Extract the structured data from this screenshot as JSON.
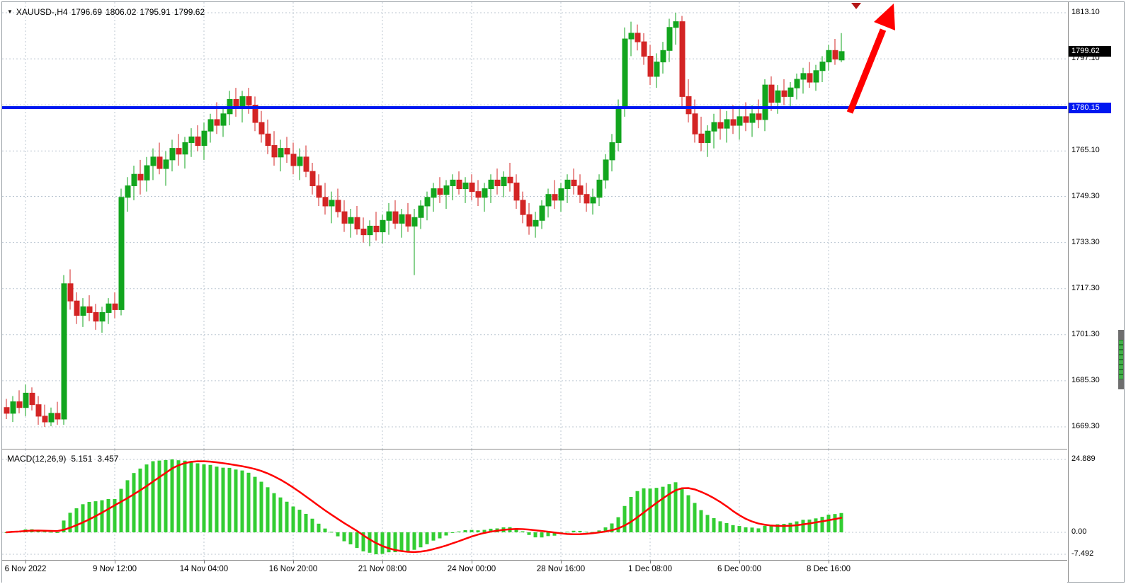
{
  "chart_data": {
    "type": "candlestick+macd",
    "symbol_tf": "XAUUSD-,H4",
    "symbol": "XAUUSD-",
    "timeframe": "H4",
    "ohlc_header": {
      "open": "1796.69",
      "high": "1806.02",
      "low": "1795.91",
      "close": "1799.62"
    },
    "price_axis": {
      "gridline_prices": [
        1813.1,
        1797.1,
        1781.1,
        1765.1,
        1749.3,
        1733.3,
        1717.3,
        1701.3,
        1685.3,
        1669.3
      ],
      "tick_labels": [
        {
          "text": "1813.10",
          "price": 1813.1
        },
        {
          "text": "1797.10",
          "price": 1797.1
        },
        {
          "text": "1765.10",
          "price": 1765.1
        },
        {
          "text": "1749.30",
          "price": 1749.3
        },
        {
          "text": "1733.30",
          "price": 1733.3
        },
        {
          "text": "1717.30",
          "price": 1717.3
        },
        {
          "text": "1701.30",
          "price": 1701.3
        },
        {
          "text": "1685.30",
          "price": 1685.3
        },
        {
          "text": "1669.30",
          "price": 1669.3
        }
      ],
      "current_price_tag": {
        "text": "1799.62",
        "price": 1799.62,
        "bg": "#000000",
        "fg": "#ffffff"
      },
      "hline_tag": {
        "text": "1780.15",
        "price": 1780.15,
        "bg": "#0018f0",
        "fg": "#ffffff"
      }
    },
    "time_axis": {
      "labels": [
        "6 Nov 2022",
        "9 Nov 12:00",
        "14 Nov 04:00",
        "16 Nov 20:00",
        "21 Nov 08:00",
        "24 Nov 00:00",
        "28 Nov 16:00",
        "1 Dec 08:00",
        "6 Dec 00:00",
        "8 Dec 16:00"
      ],
      "bar_indices": [
        3,
        17,
        31,
        45,
        59,
        73,
        87,
        101,
        115,
        129
      ]
    },
    "horizontal_line": {
      "price": 1780.15,
      "color": "#0018f0"
    },
    "annotations": {
      "trend_arrow": {
        "color": "#ff0000",
        "direction": "up-right"
      }
    },
    "colors": {
      "bull": "#12a51e",
      "bear": "#d32424",
      "grid": "#bcc7d2",
      "background": "#ffffff",
      "axis_text": "#000000"
    },
    "candles": [
      [
        1676,
        1679,
        1672,
        1674
      ],
      [
        1674,
        1680,
        1671,
        1678
      ],
      [
        1678,
        1682,
        1674,
        1676
      ],
      [
        1676,
        1684,
        1673,
        1681
      ],
      [
        1681,
        1683,
        1675,
        1677
      ],
      [
        1677,
        1680,
        1670,
        1673
      ],
      [
        1673,
        1677,
        1669.3,
        1671
      ],
      [
        1671,
        1676,
        1669.5,
        1674
      ],
      [
        1674,
        1678,
        1670,
        1672
      ],
      [
        1672,
        1722,
        1670,
        1719
      ],
      [
        1719,
        1724,
        1710,
        1713
      ],
      [
        1713,
        1716,
        1705,
        1708
      ],
      [
        1708,
        1714,
        1704,
        1711
      ],
      [
        1711,
        1715,
        1706,
        1709
      ],
      [
        1709,
        1712,
        1703,
        1706
      ],
      [
        1706,
        1711,
        1702,
        1709
      ],
      [
        1709,
        1714,
        1705,
        1712
      ],
      [
        1712,
        1716,
        1707,
        1710
      ],
      [
        1710,
        1752,
        1708,
        1749
      ],
      [
        1749,
        1756,
        1744,
        1753
      ],
      [
        1753,
        1760,
        1748,
        1757
      ],
      [
        1757,
        1762,
        1750,
        1755
      ],
      [
        1755,
        1763,
        1751,
        1760
      ],
      [
        1760,
        1766,
        1755,
        1763
      ],
      [
        1763,
        1768,
        1757,
        1759
      ],
      [
        1759,
        1765,
        1753,
        1762
      ],
      [
        1762,
        1769,
        1758,
        1766
      ],
      [
        1766,
        1771,
        1760,
        1764
      ],
      [
        1764,
        1770,
        1759,
        1768
      ],
      [
        1768,
        1773,
        1763,
        1770
      ],
      [
        1770,
        1774,
        1765,
        1767
      ],
      [
        1767,
        1775,
        1762,
        1772
      ],
      [
        1772,
        1778,
        1768,
        1776
      ],
      [
        1776,
        1782,
        1771,
        1774
      ],
      [
        1774,
        1780,
        1770,
        1778
      ],
      [
        1778,
        1786,
        1774,
        1783
      ],
      [
        1783,
        1787,
        1777,
        1780
      ],
      [
        1780,
        1786,
        1775,
        1784
      ],
      [
        1784,
        1787,
        1778,
        1781
      ],
      [
        1781,
        1784,
        1772,
        1775
      ],
      [
        1775,
        1779,
        1768,
        1771
      ],
      [
        1771,
        1776,
        1764,
        1767
      ],
      [
        1767,
        1772,
        1760,
        1763
      ],
      [
        1763,
        1769,
        1758,
        1766
      ],
      [
        1766,
        1770,
        1761,
        1764
      ],
      [
        1764,
        1768,
        1757,
        1760
      ],
      [
        1760,
        1766,
        1755,
        1763
      ],
      [
        1763,
        1767,
        1756,
        1758
      ],
      [
        1758,
        1761,
        1750,
        1753
      ],
      [
        1753,
        1757,
        1746,
        1749
      ],
      [
        1749,
        1754,
        1743,
        1746
      ],
      [
        1746,
        1751,
        1740,
        1748
      ],
      [
        1748,
        1752,
        1742,
        1744
      ],
      [
        1744,
        1748,
        1737,
        1740
      ],
      [
        1740,
        1745,
        1735,
        1742
      ],
      [
        1742,
        1746,
        1736,
        1738
      ],
      [
        1738,
        1742,
        1733.3,
        1736
      ],
      [
        1736,
        1741,
        1732,
        1739
      ],
      [
        1739,
        1744,
        1734,
        1737
      ],
      [
        1737,
        1743,
        1733,
        1741
      ],
      [
        1741,
        1747,
        1736,
        1744
      ],
      [
        1744,
        1748,
        1738,
        1740
      ],
      [
        1740,
        1745,
        1735,
        1743
      ],
      [
        1743,
        1747,
        1737,
        1739
      ],
      [
        1739,
        1745,
        1722,
        1742
      ],
      [
        1742,
        1748,
        1738,
        1746
      ],
      [
        1746,
        1751,
        1741,
        1749
      ],
      [
        1749,
        1754,
        1744,
        1752
      ],
      [
        1752,
        1756,
        1747,
        1750
      ],
      [
        1750,
        1755,
        1745,
        1753
      ],
      [
        1753,
        1757,
        1748,
        1755
      ],
      [
        1755,
        1758,
        1750,
        1752
      ],
      [
        1752,
        1756,
        1747,
        1754
      ],
      [
        1754,
        1757,
        1748,
        1751
      ],
      [
        1751,
        1755,
        1746,
        1749
      ],
      [
        1749,
        1754,
        1744,
        1752
      ],
      [
        1752,
        1757,
        1747,
        1755
      ],
      [
        1755,
        1759,
        1750,
        1753
      ],
      [
        1753,
        1758,
        1749,
        1756
      ],
      [
        1756,
        1761,
        1751,
        1754
      ],
      [
        1754,
        1757,
        1745,
        1748
      ],
      [
        1748,
        1751,
        1740,
        1743
      ],
      [
        1743,
        1747,
        1736,
        1739
      ],
      [
        1739,
        1744,
        1735,
        1741
      ],
      [
        1741,
        1748,
        1738,
        1746
      ],
      [
        1746,
        1752,
        1742,
        1750
      ],
      [
        1750,
        1755,
        1745,
        1748
      ],
      [
        1748,
        1754,
        1744,
        1752
      ],
      [
        1752,
        1757,
        1747,
        1755
      ],
      [
        1755,
        1759,
        1750,
        1753
      ],
      [
        1753,
        1757,
        1747,
        1750
      ],
      [
        1750,
        1754,
        1744,
        1747
      ],
      [
        1747,
        1752,
        1743,
        1749
      ],
      [
        1749,
        1757,
        1746,
        1755
      ],
      [
        1755,
        1764,
        1752,
        1762
      ],
      [
        1762,
        1771,
        1758,
        1768
      ],
      [
        1768,
        1783,
        1765,
        1780
      ],
      [
        1780,
        1808,
        1777,
        1804
      ],
      [
        1804,
        1810,
        1798,
        1806
      ],
      [
        1806,
        1809,
        1800,
        1803
      ],
      [
        1803,
        1806,
        1795,
        1798
      ],
      [
        1798,
        1802,
        1788,
        1791
      ],
      [
        1791,
        1799,
        1787,
        1796
      ],
      [
        1796,
        1803,
        1792,
        1800
      ],
      [
        1800,
        1811,
        1796,
        1808
      ],
      [
        1808,
        1813.1,
        1802,
        1810
      ],
      [
        1810,
        1812,
        1780,
        1784
      ],
      [
        1784,
        1790,
        1775,
        1778
      ],
      [
        1778,
        1783,
        1768,
        1771
      ],
      [
        1771,
        1777,
        1765,
        1768
      ],
      [
        1768,
        1774,
        1763,
        1772
      ],
      [
        1772,
        1778,
        1766,
        1775
      ],
      [
        1775,
        1780,
        1769,
        1773
      ],
      [
        1773,
        1779,
        1768,
        1776
      ],
      [
        1776,
        1781,
        1771,
        1774
      ],
      [
        1774,
        1780,
        1769,
        1777
      ],
      [
        1777,
        1782,
        1772,
        1775
      ],
      [
        1775,
        1781,
        1770,
        1778
      ],
      [
        1778,
        1783,
        1773,
        1776
      ],
      [
        1776,
        1790,
        1772,
        1788
      ],
      [
        1788,
        1791,
        1779,
        1782
      ],
      [
        1782,
        1788,
        1778,
        1786
      ],
      [
        1786,
        1790,
        1781,
        1784
      ],
      [
        1784,
        1789,
        1780,
        1787
      ],
      [
        1787,
        1792,
        1783,
        1790
      ],
      [
        1790,
        1794,
        1785,
        1792
      ],
      [
        1792,
        1796,
        1787,
        1789
      ],
      [
        1789,
        1795,
        1786,
        1793
      ],
      [
        1793,
        1798,
        1789,
        1796
      ],
      [
        1796,
        1802,
        1793,
        1800
      ],
      [
        1800,
        1804,
        1795,
        1797
      ],
      [
        1796.69,
        1806.02,
        1795.91,
        1799.62
      ]
    ],
    "macd": {
      "label": "MACD(12,26,9)",
      "params": [
        12,
        26,
        9
      ],
      "current_values": {
        "macd": "5.151",
        "signal": "3.457"
      },
      "y_ticks": [
        {
          "text": "24.889",
          "value": 24.889
        },
        {
          "text": "0.00",
          "value": 0
        },
        {
          "text": "-7.492",
          "value": -7.492
        }
      ],
      "histogram_color": "#32cd32",
      "signal_color": "#ff0000"
    }
  }
}
